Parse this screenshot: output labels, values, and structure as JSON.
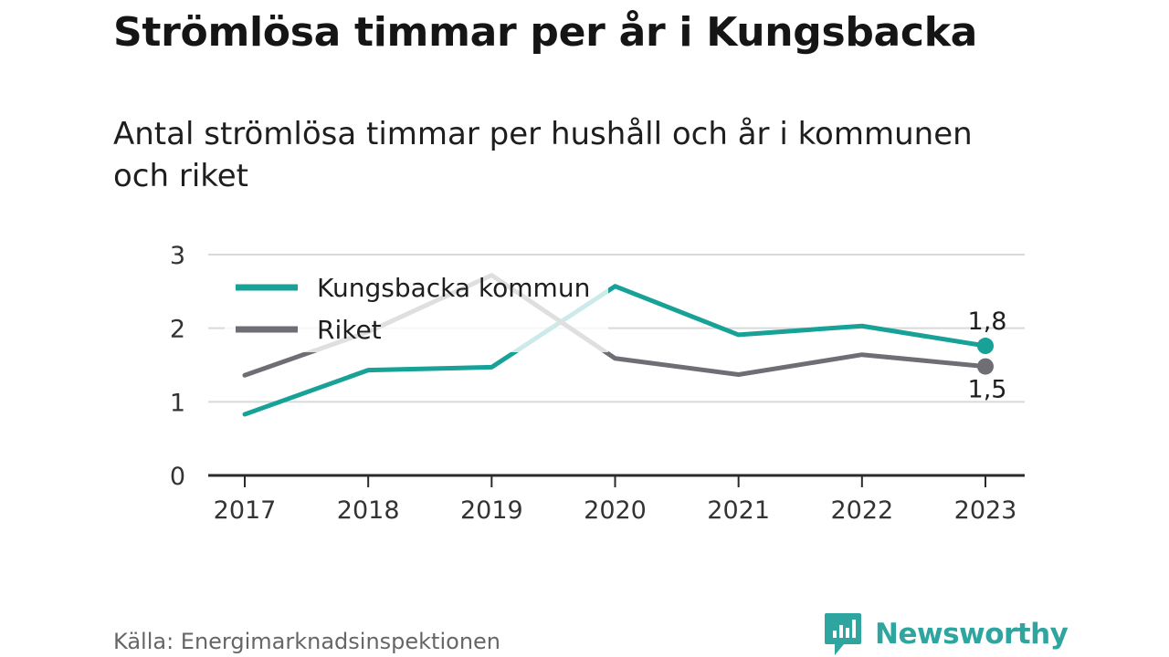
{
  "title": "Strömlösa timmar per år i Kungsbacka",
  "subtitle": "Antal strömlösa timmar per hushåll och år i kommunen och riket",
  "source": "Källa: Energimarknadsinspektionen",
  "brand": {
    "name": "Newsworthy",
    "color": "#2fa59f"
  },
  "chart_data": {
    "type": "line",
    "x": [
      "2017",
      "2018",
      "2019",
      "2020",
      "2021",
      "2022",
      "2023"
    ],
    "ylim": [
      0,
      3
    ],
    "yticks": [
      "0",
      "1",
      "2",
      "3"
    ],
    "grid": true,
    "legend_position": "top-left",
    "series": [
      {
        "name": "Kungsbacka kommun",
        "color": "#17a197",
        "values": [
          0.83,
          1.43,
          1.47,
          2.57,
          1.91,
          2.03,
          1.76
        ],
        "end_label": "1,8"
      },
      {
        "name": "Riket",
        "color": "#6f6e74",
        "values": [
          1.36,
          1.95,
          2.72,
          1.59,
          1.37,
          1.64,
          1.48
        ],
        "end_label": "1,5"
      }
    ]
  }
}
